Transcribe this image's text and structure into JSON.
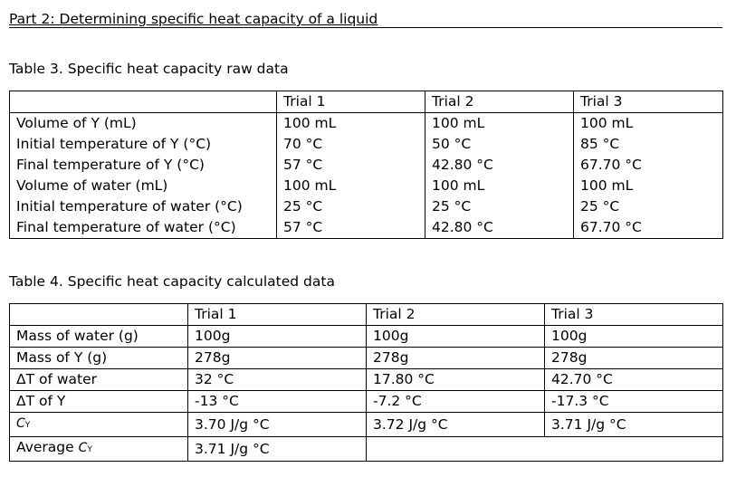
{
  "part_title": "Part 2: Determining specific heat capacity of a liquid",
  "table3": {
    "caption": "Table 3. Specific heat capacity raw data",
    "headers": [
      "",
      "Trial 1",
      "Trial 2",
      "Trial 3"
    ],
    "rows": [
      [
        "Volume of Y (mL)",
        "100 mL",
        "100 mL",
        "100 mL"
      ],
      [
        "Initial temperature of Y (°C)",
        "70 °C",
        "50 °C",
        "85 °C"
      ],
      [
        "Final temperature of Y (°C)",
        "57 °C",
        "42.80 °C",
        "67.70 °C"
      ],
      [
        "Volume of water (mL)",
        "100 mL",
        "100 mL",
        "100 mL"
      ],
      [
        "Initial temperature of water (°C)",
        "25 °C",
        "25 °C",
        "25 °C"
      ],
      [
        "Final temperature of water (°C)",
        "57 °C",
        "42.80 °C",
        "67.70 °C"
      ]
    ]
  },
  "table4": {
    "caption": "Table 4. Specific heat capacity calculated data",
    "headers": [
      "",
      "Trial 1",
      "Trial 2",
      "Trial 3"
    ],
    "rows": [
      [
        "Mass of water (g)",
        "100g",
        "100g",
        "100g"
      ],
      [
        "Mass of Y (g)",
        "278g",
        "278g",
        "278g"
      ],
      [
        "ΔT of water",
        "32 °C",
        "17.80 °C",
        "42.70 °C"
      ],
      [
        "ΔT of Y",
        "-13 °C",
        "-7.2 °C",
        "-17.3 °C"
      ],
      [
        "CY",
        "3.70 J/g °C",
        "3.72 J/g °C",
        "3.71 J/g °C"
      ]
    ],
    "average_label": "Average ",
    "average_symbol": "C",
    "average_subscript": "Y",
    "cy_symbol": "C",
    "cy_subscript": "Y",
    "average_value": "3.71 J/g °C"
  }
}
